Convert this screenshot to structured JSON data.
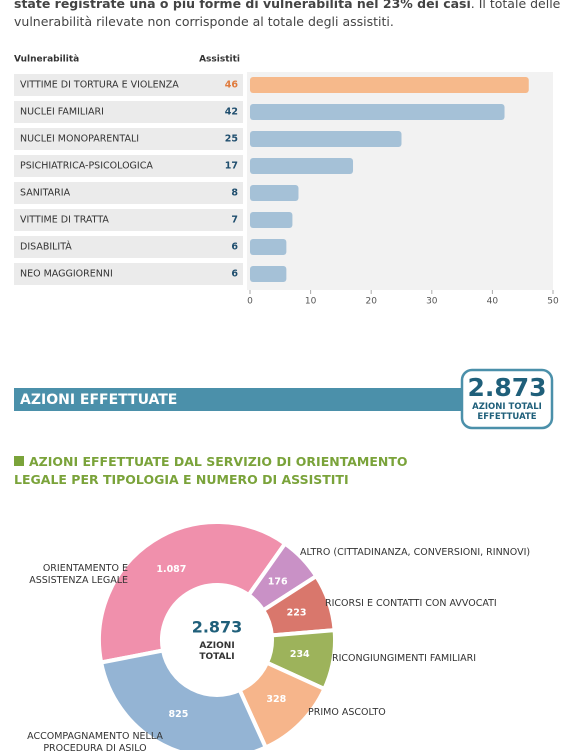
{
  "intro": {
    "bold": "state registrate una o più forme di vulnerabilità nel 23% dei casi",
    "text": ". Il totale delle vulnerabilità rilevate non corrisponde al totale degli assistiti."
  },
  "chart_data": [
    {
      "type": "bar",
      "orientation": "horizontal",
      "column_labels": [
        "Vulnerabilità",
        "Assistiti"
      ],
      "categories": [
        "VITTIME DI TORTURA E VIOLENZA",
        "NUCLEI FAMILIARI",
        "NUCLEI MONOPARENTALI",
        "PSICHIATRICA-PSICOLOGICA",
        "SANITARIA",
        "VITTIME DI TRATTA",
        "DISABILITÀ",
        "NEO MAGGIORENNI"
      ],
      "values": [
        46,
        42,
        25,
        17,
        8,
        7,
        6,
        6
      ],
      "colors": [
        "#f6b98b",
        "#a5c1d7",
        "#a5c1d7",
        "#a5c1d7",
        "#a5c1d7",
        "#a5c1d7",
        "#a5c1d7",
        "#a5c1d7"
      ],
      "label_colors": [
        "#e07b3d",
        "#1f4e6e",
        "#1f4e6e",
        "#1f4e6e",
        "#1f4e6e",
        "#1f4e6e",
        "#1f4e6e",
        "#1f4e6e"
      ],
      "xlim": [
        0,
        50
      ],
      "xticks": [
        0,
        10,
        20,
        30,
        40,
        50
      ]
    },
    {
      "type": "pie",
      "title": "AZIONI EFFETTUATE DAL SERVIZIO DI ORIENTAMENTO LEGALE PER TIPOLOGIA E NUMERO DI ASSISTITI",
      "categories": [
        "ORIENTAMENTO E ASSISTENZA LEGALE",
        "ALTRO (CITTADINANZA, CONVERSIONI, RINNOVI)",
        "RICORSI E CONTATTI CON AVVOCATI",
        "RICONGIUNGIMENTI FAMILIARI",
        "PRIMO ASCOLTO",
        "ACCOMPAGNAMENTO NELLA PROCEDURA DI ASILO"
      ],
      "values": [
        1087,
        176,
        223,
        234,
        328,
        825
      ],
      "value_labels": [
        "1.087",
        "176",
        "223",
        "234",
        "328",
        "825"
      ],
      "colors": [
        "#f090ac",
        "#c991c6",
        "#d9776c",
        "#9db35b",
        "#f6b58b",
        "#94b4d4"
      ],
      "center_value": "2.873",
      "center_label": "AZIONI TOTALI"
    }
  ],
  "section": {
    "title": "AZIONI EFFETTUATE",
    "total": "2.873",
    "total_label": "AZIONI TOTALI EFFETTUATE"
  }
}
